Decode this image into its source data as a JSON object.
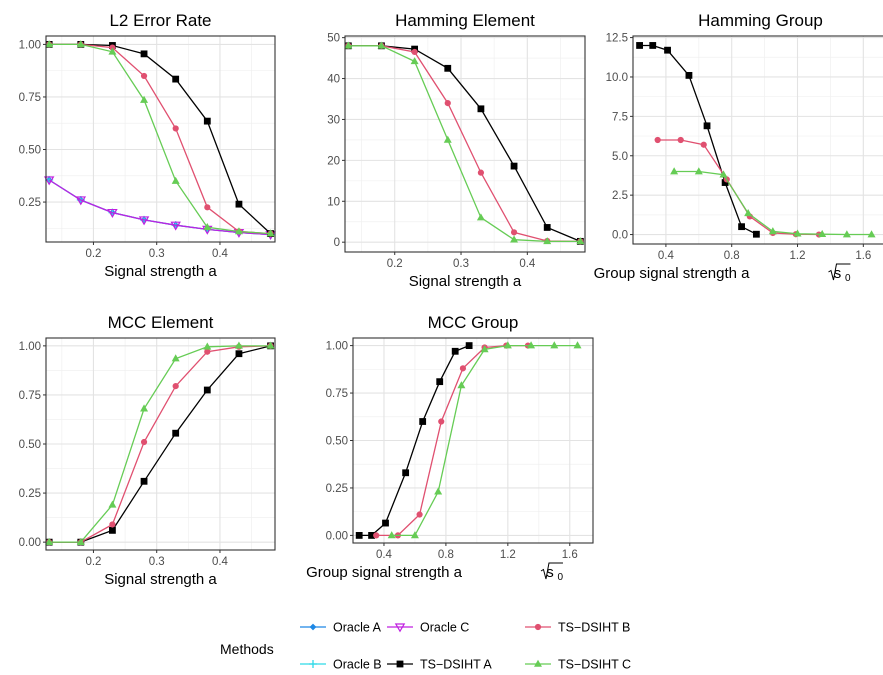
{
  "colors": {
    "oracle_a": "#1E88E5",
    "oracle_b": "#2ED9E8",
    "oracle_c": "#C020E0",
    "ts_dsiht_a": "#000000",
    "ts_dsiht_b": "#E05070",
    "ts_dsiht_c": "#66CC55"
  },
  "legend": {
    "title": "Methods",
    "items": [
      {
        "label": "Oracle A",
        "series_key": "oracle_a",
        "marker": "diamond"
      },
      {
        "label": "Oracle B",
        "series_key": "oracle_b",
        "marker": "plus"
      },
      {
        "label": "Oracle C",
        "series_key": "oracle_c",
        "marker": "triangle-down-open"
      },
      {
        "label": "TS−DSIHT A",
        "series_key": "ts_dsiht_a",
        "marker": "square"
      },
      {
        "label": "TS−DSIHT B",
        "series_key": "ts_dsiht_b",
        "marker": "circle"
      },
      {
        "label": "TS−DSIHT C",
        "series_key": "ts_dsiht_c",
        "marker": "triangle"
      }
    ]
  },
  "chart_data": [
    {
      "id": "l2",
      "type": "line",
      "title": "L2 Error Rate",
      "xlabel": "Signal strength a",
      "ylabel": "",
      "xlim": [
        0.125,
        0.487
      ],
      "ylim": [
        0.06,
        1.04
      ],
      "xticks": [
        {
          "v": 0.2,
          "label": "0.2"
        },
        {
          "v": 0.3,
          "label": "0.3"
        },
        {
          "v": 0.4,
          "label": "0.4"
        }
      ],
      "yticks": [
        {
          "v": 0.25,
          "label": "0.25"
        },
        {
          "v": 0.5,
          "label": "0.50"
        },
        {
          "v": 0.75,
          "label": "0.75"
        },
        {
          "v": 1.0,
          "label": "1.00"
        }
      ],
      "grid": true,
      "series": [
        {
          "key": "oracle_a",
          "name": "Oracle A",
          "x": [
            0.13,
            0.18,
            0.23,
            0.28,
            0.33,
            0.38,
            0.43,
            0.48
          ],
          "y": [
            0.355,
            0.26,
            0.2,
            0.165,
            0.14,
            0.12,
            0.105,
            0.095
          ]
        },
        {
          "key": "oracle_b",
          "name": "Oracle B",
          "x": [
            0.13,
            0.18,
            0.23,
            0.28,
            0.33,
            0.38,
            0.43,
            0.48
          ],
          "y": [
            0.355,
            0.26,
            0.2,
            0.165,
            0.14,
            0.12,
            0.105,
            0.095
          ]
        },
        {
          "key": "oracle_c",
          "name": "Oracle C",
          "x": [
            0.13,
            0.18,
            0.23,
            0.28,
            0.33,
            0.38,
            0.43,
            0.48
          ],
          "y": [
            0.355,
            0.26,
            0.2,
            0.165,
            0.14,
            0.12,
            0.105,
            0.095
          ]
        },
        {
          "key": "ts_dsiht_a",
          "name": "TS−DSIHT A",
          "x": [
            0.13,
            0.18,
            0.23,
            0.28,
            0.33,
            0.38,
            0.43,
            0.48
          ],
          "y": [
            1.0,
            1.0,
            0.995,
            0.955,
            0.835,
            0.635,
            0.24,
            0.1
          ]
        },
        {
          "key": "ts_dsiht_b",
          "name": "TS−DSIHT B",
          "x": [
            0.13,
            0.18,
            0.23,
            0.28,
            0.33,
            0.38,
            0.43,
            0.48
          ],
          "y": [
            1.0,
            1.0,
            0.985,
            0.85,
            0.6,
            0.225,
            0.11,
            0.1
          ]
        },
        {
          "key": "ts_dsiht_c",
          "name": "TS−DSIHT C",
          "x": [
            0.13,
            0.18,
            0.23,
            0.28,
            0.33,
            0.38,
            0.43,
            0.48
          ],
          "y": [
            1.0,
            1.0,
            0.965,
            0.735,
            0.35,
            0.13,
            0.11,
            0.1
          ]
        }
      ]
    },
    {
      "id": "hamming_element",
      "type": "line",
      "title": "Hamming Element",
      "xlabel": "Signal strength a",
      "ylabel": "",
      "xlim": [
        0.125,
        0.487
      ],
      "ylim": [
        -2.4,
        50.4
      ],
      "xticks": [
        {
          "v": 0.2,
          "label": "0.2"
        },
        {
          "v": 0.3,
          "label": "0.3"
        },
        {
          "v": 0.4,
          "label": "0.4"
        }
      ],
      "yticks": [
        {
          "v": 0,
          "label": "0"
        },
        {
          "v": 10,
          "label": "10"
        },
        {
          "v": 20,
          "label": "20"
        },
        {
          "v": 30,
          "label": "30"
        },
        {
          "v": 40,
          "label": "40"
        },
        {
          "v": 50,
          "label": "50"
        }
      ],
      "grid": true,
      "series": [
        {
          "key": "ts_dsiht_a",
          "name": "TS−DSIHT A",
          "x": [
            0.13,
            0.18,
            0.23,
            0.28,
            0.33,
            0.38,
            0.43,
            0.48
          ],
          "y": [
            48,
            48,
            47.2,
            42.5,
            32.6,
            18.6,
            3.6,
            0.2
          ]
        },
        {
          "key": "ts_dsiht_b",
          "name": "TS−DSIHT B",
          "x": [
            0.13,
            0.18,
            0.23,
            0.28,
            0.33,
            0.38,
            0.43,
            0.48
          ],
          "y": [
            48,
            48,
            46.5,
            34,
            17,
            2.4,
            0.3,
            0.2
          ]
        },
        {
          "key": "ts_dsiht_c",
          "name": "TS−DSIHT C",
          "x": [
            0.13,
            0.18,
            0.23,
            0.28,
            0.33,
            0.38,
            0.43,
            0.48
          ],
          "y": [
            48,
            48,
            44.2,
            25,
            6,
            0.6,
            0.2,
            0.2
          ]
        }
      ]
    },
    {
      "id": "hamming_group",
      "type": "line",
      "title": "Hamming Group",
      "xlabel": "Group signal strength a",
      "xlabel_sqrt": "s",
      "xlabel_sub": "0",
      "ylabel": "",
      "xlim": [
        0.2,
        1.75
      ],
      "ylim": [
        -0.6,
        12.6
      ],
      "xticks": [
        {
          "v": 0.4,
          "label": "0.4"
        },
        {
          "v": 0.8,
          "label": "0.8"
        },
        {
          "v": 1.2,
          "label": "1.2"
        },
        {
          "v": 1.6,
          "label": "1.6"
        }
      ],
      "yticks": [
        {
          "v": 0,
          "label": "0.0"
        },
        {
          "v": 2.5,
          "label": "2.5"
        },
        {
          "v": 5.0,
          "label": "5.0"
        },
        {
          "v": 7.5,
          "label": "7.5"
        },
        {
          "v": 10.0,
          "label": "10.0"
        },
        {
          "v": 12.5,
          "label": "12.5"
        }
      ],
      "grid": true,
      "series": [
        {
          "key": "ts_dsiht_a",
          "name": "TS−DSIHT A",
          "x": [
            0.24,
            0.32,
            0.41,
            0.54,
            0.65,
            0.76,
            0.86,
            0.95
          ],
          "y": [
            12,
            12,
            11.7,
            10.1,
            6.9,
            3.3,
            0.5,
            0.02
          ]
        },
        {
          "key": "ts_dsiht_b",
          "name": "TS−DSIHT B",
          "x": [
            0.35,
            0.49,
            0.63,
            0.77,
            0.91,
            1.05,
            1.19,
            1.33
          ],
          "y": [
            6,
            6,
            5.7,
            3.5,
            1.15,
            0.1,
            0.02,
            0.0
          ]
        },
        {
          "key": "ts_dsiht_c",
          "name": "TS−DSIHT C",
          "x": [
            0.45,
            0.6,
            0.75,
            0.9,
            1.05,
            1.2,
            1.35,
            1.5,
            1.65
          ],
          "y": [
            4,
            4,
            3.8,
            1.35,
            0.2,
            0.05,
            0.02,
            0.0,
            0.0
          ]
        }
      ]
    },
    {
      "id": "mcc_element",
      "type": "line",
      "title": "MCC Element",
      "xlabel": "Signal strength a",
      "ylabel": "",
      "xlim": [
        0.125,
        0.487
      ],
      "ylim": [
        -0.04,
        1.04
      ],
      "xticks": [
        {
          "v": 0.2,
          "label": "0.2"
        },
        {
          "v": 0.3,
          "label": "0.3"
        },
        {
          "v": 0.4,
          "label": "0.4"
        }
      ],
      "yticks": [
        {
          "v": 0,
          "label": "0.00"
        },
        {
          "v": 0.25,
          "label": "0.25"
        },
        {
          "v": 0.5,
          "label": "0.50"
        },
        {
          "v": 0.75,
          "label": "0.75"
        },
        {
          "v": 1.0,
          "label": "1.00"
        }
      ],
      "grid": true,
      "series": [
        {
          "key": "ts_dsiht_a",
          "name": "TS−DSIHT A",
          "x": [
            0.13,
            0.18,
            0.23,
            0.28,
            0.33,
            0.38,
            0.43,
            0.48
          ],
          "y": [
            0,
            0,
            0.06,
            0.31,
            0.555,
            0.775,
            0.96,
            1.0
          ]
        },
        {
          "key": "ts_dsiht_b",
          "name": "TS−DSIHT B",
          "x": [
            0.13,
            0.18,
            0.23,
            0.28,
            0.33,
            0.38,
            0.43,
            0.48
          ],
          "y": [
            0,
            0,
            0.09,
            0.51,
            0.795,
            0.97,
            0.995,
            1.0
          ]
        },
        {
          "key": "ts_dsiht_c",
          "name": "TS−DSIHT C",
          "x": [
            0.13,
            0.18,
            0.23,
            0.28,
            0.33,
            0.38,
            0.43,
            0.48
          ],
          "y": [
            0,
            0,
            0.19,
            0.68,
            0.935,
            0.995,
            1.0,
            1.0
          ]
        }
      ]
    },
    {
      "id": "mcc_group",
      "type": "line",
      "title": "MCC Group",
      "xlabel": "Group signal strength a",
      "xlabel_sqrt": "s",
      "xlabel_sub": "0",
      "ylabel": "",
      "xlim": [
        0.2,
        1.75
      ],
      "ylim": [
        -0.04,
        1.04
      ],
      "xticks": [
        {
          "v": 0.4,
          "label": "0.4"
        },
        {
          "v": 0.8,
          "label": "0.8"
        },
        {
          "v": 1.2,
          "label": "1.2"
        },
        {
          "v": 1.6,
          "label": "1.6"
        }
      ],
      "yticks": [
        {
          "v": 0,
          "label": "0.00"
        },
        {
          "v": 0.25,
          "label": "0.25"
        },
        {
          "v": 0.5,
          "label": "0.50"
        },
        {
          "v": 0.75,
          "label": "0.75"
        },
        {
          "v": 1.0,
          "label": "1.00"
        }
      ],
      "grid": true,
      "series": [
        {
          "key": "ts_dsiht_a",
          "name": "TS−DSIHT A",
          "x": [
            0.24,
            0.32,
            0.41,
            0.54,
            0.65,
            0.76,
            0.86,
            0.95
          ],
          "y": [
            0,
            0,
            0.065,
            0.33,
            0.6,
            0.81,
            0.97,
            1.0
          ]
        },
        {
          "key": "ts_dsiht_b",
          "name": "TS−DSIHT B",
          "x": [
            0.35,
            0.49,
            0.63,
            0.77,
            0.91,
            1.05,
            1.19,
            1.33
          ],
          "y": [
            0,
            0,
            0.11,
            0.6,
            0.88,
            0.99,
            1.0,
            1.0
          ]
        },
        {
          "key": "ts_dsiht_c",
          "name": "TS−DSIHT C",
          "x": [
            0.45,
            0.6,
            0.75,
            0.9,
            1.05,
            1.2,
            1.35,
            1.5,
            1.65
          ],
          "y": [
            0,
            0,
            0.23,
            0.79,
            0.98,
            1.0,
            1.0,
            1.0,
            1.0
          ]
        }
      ]
    }
  ]
}
